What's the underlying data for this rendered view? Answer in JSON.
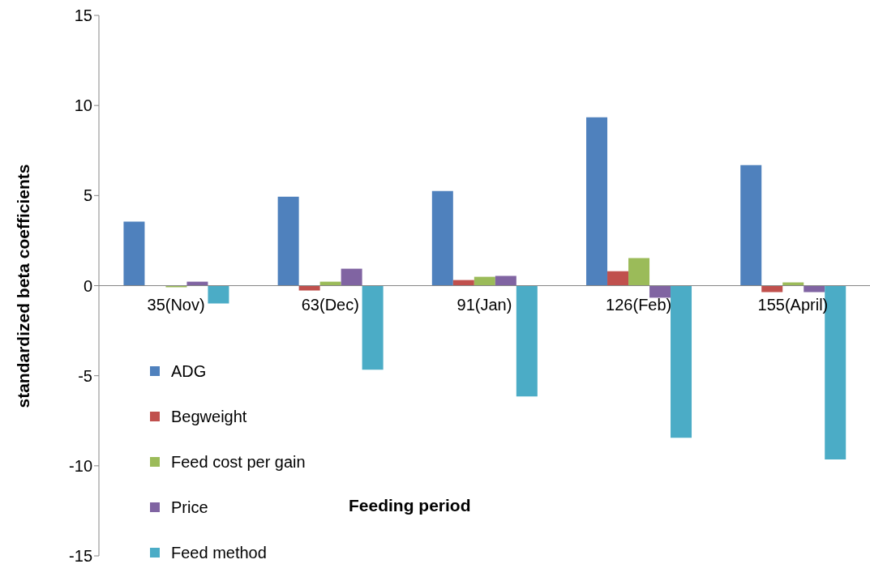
{
  "chart_data": {
    "type": "bar",
    "ylabel": "standardized beta coefficients",
    "xlabel": "Feeding period",
    "categories": [
      "35(Nov)",
      "63(Dec)",
      "91(Jan)",
      "126(Feb)",
      "155(April)"
    ],
    "series": [
      {
        "name": "ADG",
        "color": "#4f81bd",
        "values": [
          3.55,
          4.94,
          5.25,
          9.34,
          6.69
        ]
      },
      {
        "name": "Begweight",
        "color": "#c0504d",
        "values": [
          0,
          -0.27,
          0.31,
          0.8,
          -0.36
        ]
      },
      {
        "name": "Feed cost per gain",
        "color": "#9bbb59",
        "values": [
          -0.09,
          0.22,
          0.49,
          1.53,
          0.18
        ]
      },
      {
        "name": "Price",
        "color": "#8064a2",
        "values": [
          0.22,
          0.94,
          0.54,
          -0.67,
          -0.36
        ]
      },
      {
        "name": "Feed method",
        "color": "#4bacc6",
        "values": [
          -0.99,
          -4.67,
          -6.15,
          -8.44,
          -9.65
        ]
      }
    ],
    "ylim": [
      -15,
      15
    ],
    "yticks": [
      -15,
      -10,
      -5,
      0,
      5,
      10,
      15
    ],
    "grid": false,
    "legend": "bottom left"
  }
}
